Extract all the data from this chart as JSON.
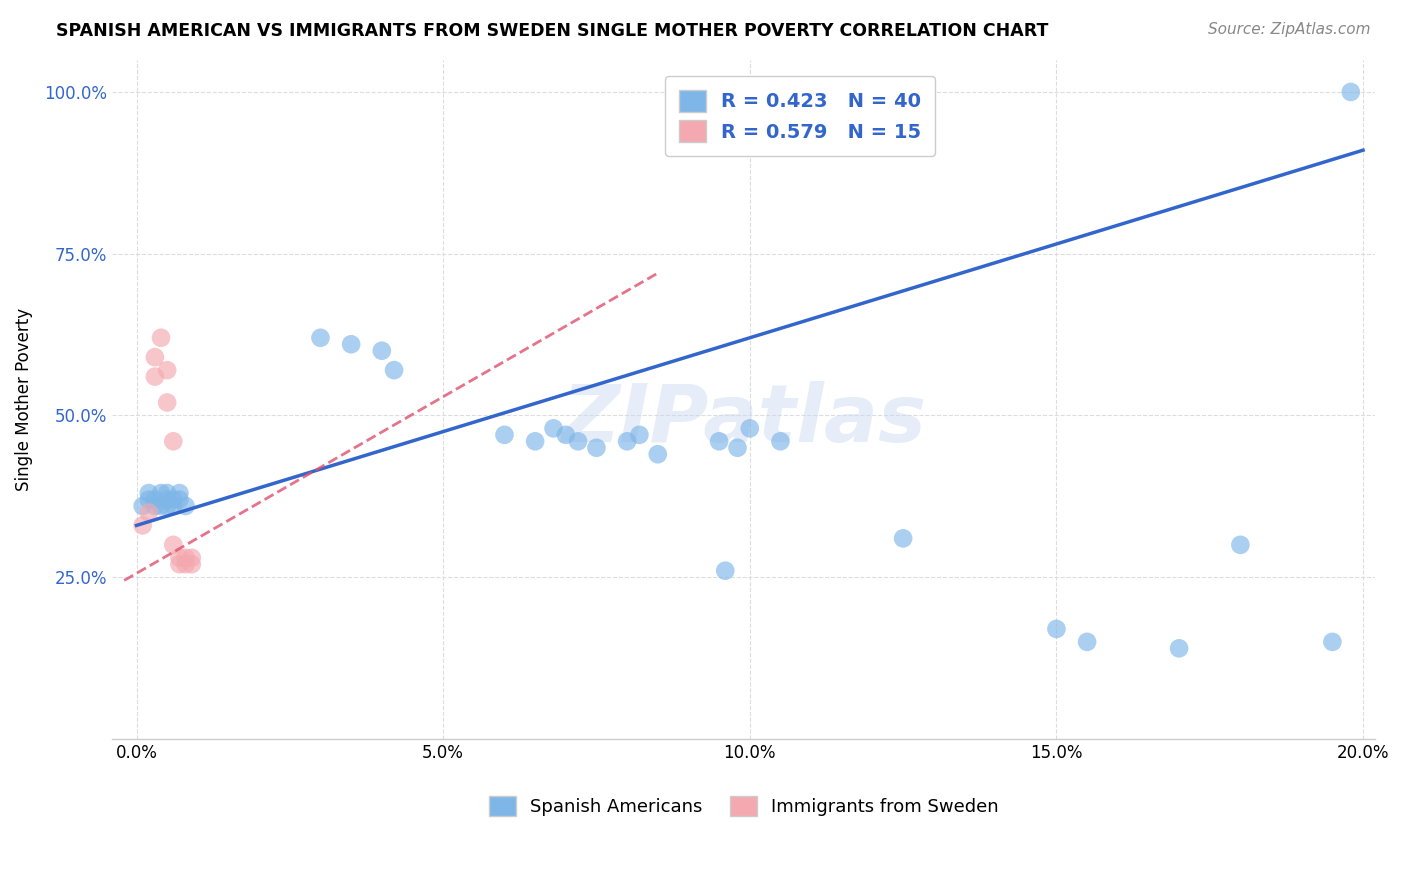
{
  "title": "SPANISH AMERICAN VS IMMIGRANTS FROM SWEDEN SINGLE MOTHER POVERTY CORRELATION CHART",
  "source": "Source: ZipAtlas.com",
  "ylabel": "Single Mother Poverty",
  "x_min": 0.0,
  "x_max": 0.2,
  "y_min": 0.0,
  "y_max": 1.05,
  "x_ticks": [
    0.0,
    0.05,
    0.1,
    0.15,
    0.2
  ],
  "x_tick_labels": [
    "0.0%",
    "5.0%",
    "10.0%",
    "15.0%",
    "20.0%"
  ],
  "y_ticks": [
    0.25,
    0.5,
    0.75,
    1.0
  ],
  "y_tick_labels": [
    "25.0%",
    "50.0%",
    "75.0%",
    "100.0%"
  ],
  "blue_color": "#7EB6E8",
  "pink_color": "#F4A8B0",
  "trend_blue": "#3366CC",
  "trend_pink": "#E05070",
  "R_blue": 0.423,
  "N_blue": 40,
  "R_pink": 0.579,
  "N_pink": 15,
  "watermark": "ZIPatlas",
  "legend_label_blue": "Spanish Americans",
  "legend_label_pink": "Immigrants from Sweden",
  "blue_points_x": [
    0.001,
    0.002,
    0.002,
    0.003,
    0.003,
    0.004,
    0.004,
    0.005,
    0.005,
    0.005,
    0.006,
    0.006,
    0.007,
    0.007,
    0.008,
    0.03,
    0.035,
    0.04,
    0.042,
    0.06,
    0.065,
    0.068,
    0.07,
    0.072,
    0.075,
    0.08,
    0.082,
    0.085,
    0.095,
    0.098,
    0.1,
    0.105,
    0.125,
    0.15,
    0.155,
    0.17,
    0.18,
    0.195,
    0.096,
    0.198
  ],
  "blue_points_y": [
    0.36,
    0.37,
    0.38,
    0.36,
    0.37,
    0.38,
    0.36,
    0.37,
    0.38,
    0.36,
    0.37,
    0.36,
    0.37,
    0.38,
    0.36,
    0.62,
    0.61,
    0.6,
    0.57,
    0.47,
    0.46,
    0.48,
    0.47,
    0.46,
    0.45,
    0.46,
    0.47,
    0.44,
    0.46,
    0.45,
    0.48,
    0.46,
    0.31,
    0.17,
    0.15,
    0.14,
    0.3,
    0.15,
    0.26,
    1.0
  ],
  "pink_points_x": [
    0.001,
    0.002,
    0.003,
    0.003,
    0.004,
    0.005,
    0.005,
    0.006,
    0.006,
    0.007,
    0.007,
    0.008,
    0.008,
    0.009,
    0.009
  ],
  "pink_points_y": [
    0.33,
    0.35,
    0.56,
    0.59,
    0.62,
    0.57,
    0.52,
    0.46,
    0.3,
    0.28,
    0.27,
    0.28,
    0.27,
    0.27,
    0.28
  ],
  "blue_trend_x": [
    0.0,
    0.2
  ],
  "blue_trend_y": [
    0.33,
    0.91
  ],
  "pink_trend_x": [
    -0.002,
    0.085
  ],
  "pink_trend_y": [
    0.245,
    0.72
  ],
  "background_color": "#FFFFFF",
  "grid_color": "#DDDDDD"
}
